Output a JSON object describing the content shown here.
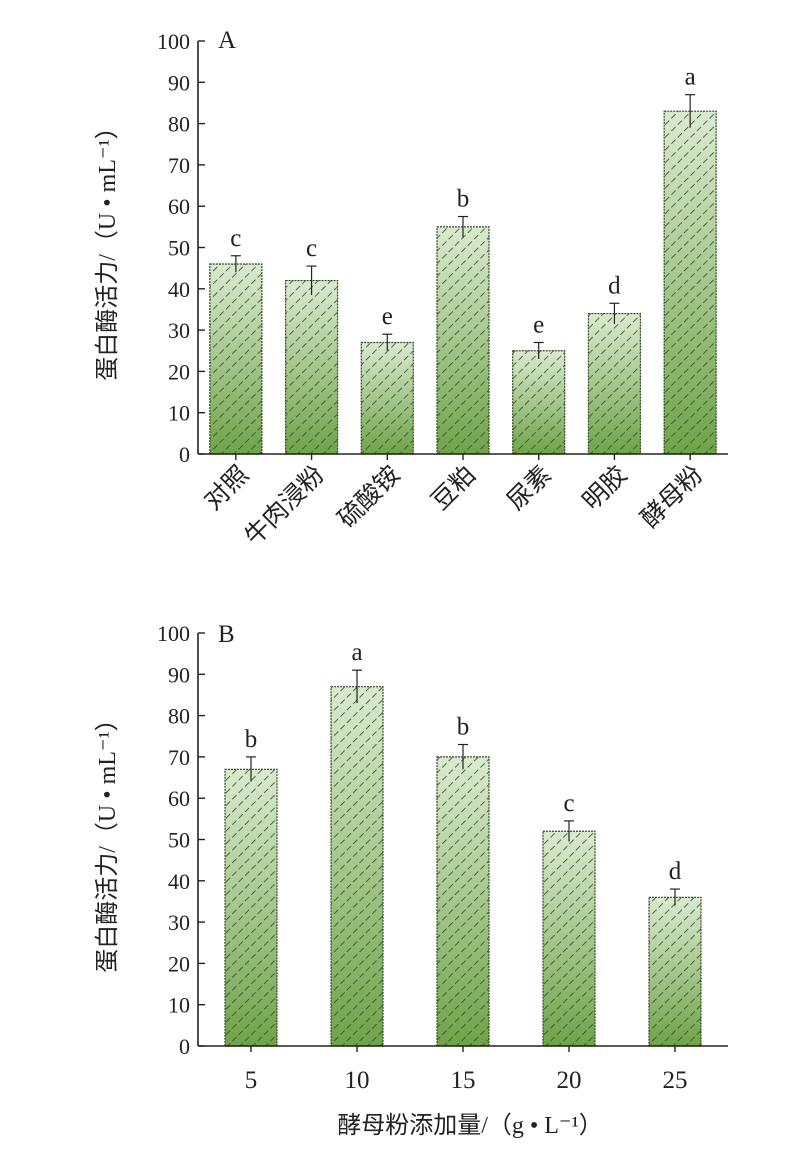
{
  "chart_data": [
    {
      "type": "bar",
      "panel_label": "A",
      "ylabel": "蛋白酶活力/（U • mL⁻¹）",
      "xlabel": "",
      "ylim": [
        0,
        100
      ],
      "yticks": [
        0,
        10,
        20,
        30,
        40,
        50,
        60,
        70,
        80,
        90,
        100
      ],
      "categories": [
        "对照",
        "牛肉浸粉",
        "硫酸铵",
        "豆粕",
        "尿素",
        "明胶",
        "酵母粉"
      ],
      "values": [
        46,
        42,
        27,
        55,
        25,
        34,
        83
      ],
      "errors": [
        2,
        3.5,
        2,
        2.5,
        2,
        2.5,
        4
      ],
      "significance": [
        "c",
        "c",
        "e",
        "b",
        "e",
        "d",
        "a"
      ],
      "colors": {
        "bar_top": "#dbead0",
        "bar_bottom": "#6fa34a",
        "hatch": "#2f4a22"
      }
    },
    {
      "type": "bar",
      "panel_label": "B",
      "ylabel": "蛋白酶活力/（U • mL⁻¹）",
      "xlabel": "酵母粉添加量/（g • L⁻¹）",
      "ylim": [
        0,
        100
      ],
      "yticks": [
        0,
        10,
        20,
        30,
        40,
        50,
        60,
        70,
        80,
        90,
        100
      ],
      "categories": [
        "5",
        "10",
        "15",
        "20",
        "25"
      ],
      "values": [
        67,
        87,
        70,
        52,
        36
      ],
      "errors": [
        3,
        4,
        3,
        2.5,
        2
      ],
      "significance": [
        "b",
        "a",
        "b",
        "c",
        "d"
      ],
      "colors": {
        "bar_top": "#dbead0",
        "bar_bottom": "#6fa34a",
        "hatch": "#2f4a22"
      }
    }
  ]
}
